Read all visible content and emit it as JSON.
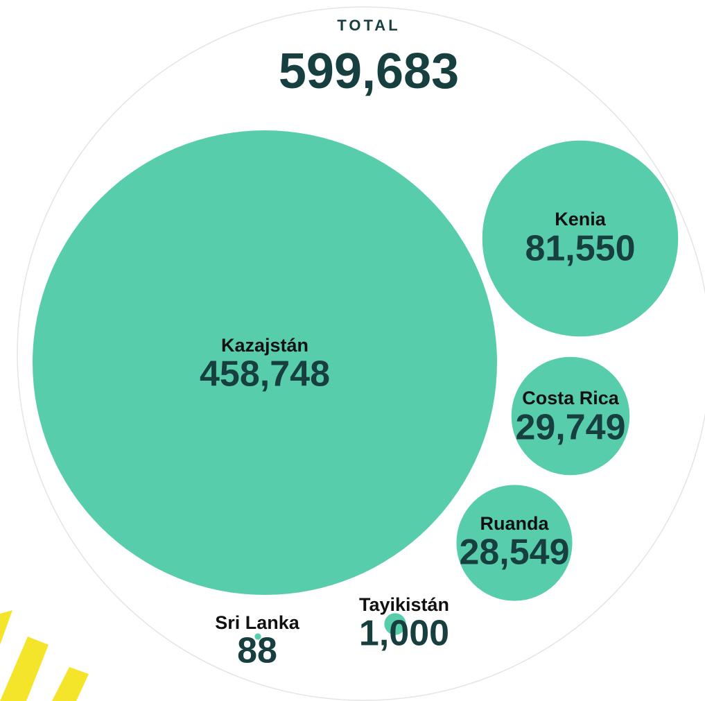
{
  "chart_data": {
    "type": "bubble",
    "total_title": "TOTAL",
    "total": {
      "value": 599683,
      "label": "599,683"
    },
    "color": "#57cdac",
    "categories": [
      "Kazajstán",
      "Kenia",
      "Costa Rica",
      "Ruanda",
      "Tayikistán",
      "Sri Lanka"
    ],
    "values": [
      458748,
      81550,
      29749,
      28549,
      1000,
      88
    ],
    "value_labels": [
      "458,748",
      "81,550",
      "29,749",
      "28,549",
      "1,000",
      "88"
    ]
  }
}
